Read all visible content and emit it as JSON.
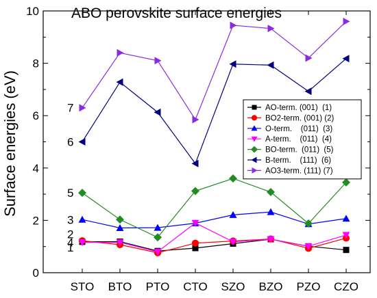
{
  "chart_data": {
    "type": "line",
    "title": "ABO perovskite surface energies",
    "xlabel": "",
    "ylabel": "Surface energies (eV)",
    "categories": [
      "STO",
      "BTO",
      "PTO",
      "CTO",
      "SZO",
      "BZO",
      "PZO",
      "CZO"
    ],
    "ylim": [
      0,
      10
    ],
    "yticks": [
      "0",
      "2",
      "4",
      "6",
      "8",
      "10"
    ],
    "grid": false,
    "legend_position": "center-right",
    "series": [
      {
        "name": "AO-term. (001)  (1)",
        "color": "#000000",
        "marker": "square",
        "values": [
          1.18,
          1.19,
          0.83,
          0.94,
          1.11,
          1.28,
          1.01,
          0.87
        ],
        "label": "1"
      },
      {
        "name": "BO2-term. (001) (2)",
        "color": "#ff0000",
        "marker": "circle",
        "values": [
          1.22,
          1.07,
          0.76,
          1.13,
          1.21,
          1.29,
          0.93,
          1.32
        ],
        "label": "2"
      },
      {
        "name": "O-term.    (011)  (3)",
        "color": "#0000ff",
        "marker": "triangle-up",
        "values": [
          2.03,
          1.71,
          1.72,
          1.89,
          2.21,
          2.32,
          1.86,
          2.07
        ],
        "label": "3"
      },
      {
        "name": "A-term.    (011)  (4)",
        "color": "#ff00ff",
        "marker": "triangle-down",
        "values": [
          1.16,
          1.16,
          0.8,
          1.9,
          1.18,
          1.28,
          1.01,
          1.44
        ],
        "label": "4"
      },
      {
        "name": "BO-term.  (011)  (5)",
        "color": "#228b22",
        "marker": "diamond",
        "values": [
          3.05,
          2.03,
          1.35,
          3.12,
          3.6,
          3.08,
          1.88,
          3.45
        ],
        "label": "5"
      },
      {
        "name": "B-term.    (111)  (6)",
        "color": "#000080",
        "marker": "triangle-left",
        "values": [
          5.0,
          7.28,
          6.13,
          4.17,
          7.97,
          7.93,
          6.93,
          8.18
        ],
        "label": "6"
      },
      {
        "name": "AO3-term. (111) (7)",
        "color": "#8a2be2",
        "marker": "triangle-right",
        "values": [
          6.3,
          8.4,
          8.1,
          5.85,
          9.45,
          9.33,
          8.2,
          9.6
        ],
        "label": "7"
      }
    ],
    "series_number_labels": [
      "1",
      "2",
      "3",
      "4",
      "5",
      "6",
      "7"
    ]
  }
}
